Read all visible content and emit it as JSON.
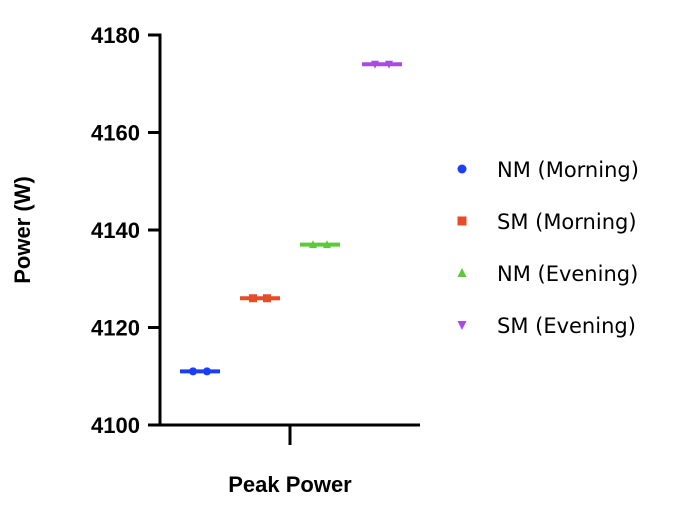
{
  "chart_data": {
    "type": "scatter",
    "title": "",
    "xlabel": "Peak Power",
    "ylabel": "Power (W)",
    "ylim": [
      4100,
      4180
    ],
    "yticks": [
      4100,
      4120,
      4140,
      4160,
      4180
    ],
    "categories": [
      "Peak Power"
    ],
    "legend_position": "right",
    "grid": false,
    "series": [
      {
        "name": "NM (Morning)",
        "values": [
          4111
        ],
        "color": "#1a3ff5",
        "marker": "circle"
      },
      {
        "name": "SM (Morning)",
        "values": [
          4126
        ],
        "color": "#e84a2a",
        "marker": "square"
      },
      {
        "name": "NM (Evening)",
        "values": [
          4137
        ],
        "color": "#5cc93a",
        "marker": "triangle-up"
      },
      {
        "name": "SM (Evening)",
        "values": [
          4174
        ],
        "color": "#a64ce6",
        "marker": "triangle-down"
      }
    ]
  }
}
